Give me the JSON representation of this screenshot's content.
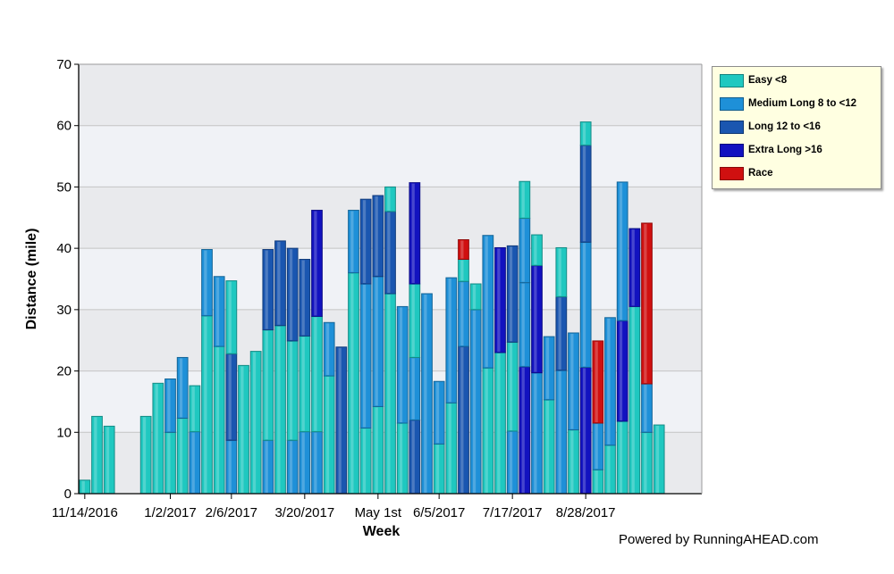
{
  "footer": {
    "credit": "Powered by RunningAHEAD.com"
  },
  "chart_data": {
    "type": "bar",
    "stacked": true,
    "title": "",
    "xlabel": "Week",
    "ylabel": "Distance (mile)",
    "ylim": [
      0,
      70
    ],
    "yticks": [
      0,
      10,
      20,
      30,
      40,
      50,
      60,
      70
    ],
    "grid": true,
    "legend_position": "right-top",
    "weeks": [
      "2016-11-14",
      "2016-11-21",
      "2016-11-28",
      "2016-12-05",
      "2016-12-12",
      "2016-12-19",
      "2016-12-26",
      "2017-01-02",
      "2017-01-09",
      "2017-01-16",
      "2017-01-23",
      "2017-01-30",
      "2017-02-06",
      "2017-02-13",
      "2017-02-20",
      "2017-02-27",
      "2017-03-06",
      "2017-03-13",
      "2017-03-20",
      "2017-03-27",
      "2017-04-03",
      "2017-04-10",
      "2017-04-17",
      "2017-04-24",
      "2017-05-01",
      "2017-05-08",
      "2017-05-15",
      "2017-05-22",
      "2017-05-29",
      "2017-06-05",
      "2017-06-12",
      "2017-06-19",
      "2017-06-26",
      "2017-07-03",
      "2017-07-10",
      "2017-07-17",
      "2017-07-24",
      "2017-07-31",
      "2017-08-07",
      "2017-08-14",
      "2017-08-21",
      "2017-08-28",
      "2017-09-04",
      "2017-09-11",
      "2017-09-18",
      "2017-09-25",
      "2017-10-02",
      "2017-10-09",
      "2017-10-16",
      "2017-10-23",
      "2017-10-30"
    ],
    "x_tick_labels": [
      {
        "week": "2016-11-14",
        "label": "11/14/2016"
      },
      {
        "week": "2017-01-02",
        "label": "1/2/2017"
      },
      {
        "week": "2017-02-06",
        "label": "2/6/2017"
      },
      {
        "week": "2017-03-20",
        "label": "3/20/2017"
      },
      {
        "week": "2017-05-01",
        "label": "May 1st"
      },
      {
        "week": "2017-06-05",
        "label": "6/5/2017"
      },
      {
        "week": "2017-07-17",
        "label": "7/17/2017"
      },
      {
        "week": "2017-08-28",
        "label": "8/28/2017"
      }
    ],
    "series": [
      {
        "name": "Easy <8",
        "color": "#1fc8c0"
      },
      {
        "name": "Medium Long 8 to <12",
        "color": "#1e90d8"
      },
      {
        "name": "Long 12 to <16",
        "color": "#1a56b0"
      },
      {
        "name": "Extra Long >16",
        "color": "#1212c0"
      },
      {
        "name": "Race",
        "color": "#d01010"
      }
    ],
    "bars": [
      {
        "week": "2016-11-14",
        "segments": [
          [
            0,
            2.2
          ]
        ]
      },
      {
        "week": "2016-11-21",
        "segments": [
          [
            0,
            12.6
          ]
        ]
      },
      {
        "week": "2016-11-28",
        "segments": [
          [
            0,
            11
          ]
        ]
      },
      {
        "week": "2016-12-05",
        "segments": []
      },
      {
        "week": "2016-12-12",
        "segments": []
      },
      {
        "week": "2016-12-19",
        "segments": [
          [
            0,
            12.6
          ]
        ]
      },
      {
        "week": "2016-12-26",
        "segments": [
          [
            0,
            18
          ]
        ]
      },
      {
        "week": "2017-01-02",
        "segments": [
          [
            0,
            10
          ],
          [
            1,
            8.7
          ]
        ]
      },
      {
        "week": "2017-01-09",
        "segments": [
          [
            0,
            12.3
          ],
          [
            1,
            9.9
          ]
        ]
      },
      {
        "week": "2017-01-16",
        "segments": [
          [
            1,
            10.1
          ],
          [
            0,
            7.5
          ]
        ]
      },
      {
        "week": "2017-01-23",
        "segments": [
          [
            0,
            29
          ],
          [
            1,
            10.8
          ]
        ]
      },
      {
        "week": "2017-01-30",
        "segments": [
          [
            0,
            24
          ],
          [
            1,
            11.4
          ]
        ]
      },
      {
        "week": "2017-02-06",
        "segments": [
          [
            1,
            8.7
          ],
          [
            2,
            14.1
          ],
          [
            0,
            11.9
          ]
        ]
      },
      {
        "week": "2017-02-13",
        "segments": [
          [
            0,
            20.9
          ]
        ]
      },
      {
        "week": "2017-02-20",
        "segments": [
          [
            0,
            23.2
          ]
        ]
      },
      {
        "week": "2017-02-27",
        "segments": [
          [
            1,
            8.7
          ],
          [
            0,
            18
          ],
          [
            2,
            13.1
          ]
        ]
      },
      {
        "week": "2017-03-06",
        "segments": [
          [
            0,
            27.4
          ],
          [
            2,
            13.8
          ]
        ]
      },
      {
        "week": "2017-03-13",
        "segments": [
          [
            1,
            8.7
          ],
          [
            0,
            16.2
          ],
          [
            2,
            15.1
          ]
        ]
      },
      {
        "week": "2017-03-20",
        "segments": [
          [
            1,
            10.1
          ],
          [
            0,
            15.6
          ],
          [
            2,
            12.5
          ]
        ]
      },
      {
        "week": "2017-03-27",
        "segments": [
          [
            1,
            10.1
          ],
          [
            0,
            18.8
          ],
          [
            3,
            17.3
          ]
        ]
      },
      {
        "week": "2017-04-03",
        "segments": [
          [
            0,
            19.2
          ],
          [
            1,
            8.7
          ]
        ]
      },
      {
        "week": "2017-04-10",
        "segments": [
          [
            2,
            23.9
          ]
        ]
      },
      {
        "week": "2017-04-17",
        "segments": [
          [
            0,
            36
          ],
          [
            1,
            10.2
          ]
        ]
      },
      {
        "week": "2017-04-24",
        "segments": [
          [
            0,
            10.7
          ],
          [
            1,
            23.5
          ],
          [
            2,
            13.8
          ]
        ]
      },
      {
        "week": "2017-05-01",
        "segments": [
          [
            0,
            14.2
          ],
          [
            1,
            21.2
          ],
          [
            2,
            13.2
          ]
        ]
      },
      {
        "week": "2017-05-08",
        "segments": [
          [
            0,
            32.6
          ],
          [
            2,
            13.4
          ],
          [
            0,
            4
          ]
        ]
      },
      {
        "week": "2017-05-15",
        "segments": [
          [
            0,
            11.5
          ],
          [
            1,
            19
          ]
        ]
      },
      {
        "week": "2017-05-22",
        "segments": [
          [
            2,
            12
          ],
          [
            1,
            10.2
          ],
          [
            0,
            12
          ],
          [
            3,
            16.5
          ]
        ]
      },
      {
        "week": "2017-05-29",
        "segments": [
          [
            1,
            32.6
          ]
        ]
      },
      {
        "week": "2017-06-05",
        "segments": [
          [
            0,
            8.1
          ],
          [
            1,
            10.2
          ]
        ]
      },
      {
        "week": "2017-06-12",
        "segments": [
          [
            0,
            14.8
          ],
          [
            1,
            20.4
          ]
        ]
      },
      {
        "week": "2017-06-19",
        "segments": [
          [
            2,
            24
          ],
          [
            1,
            10.6
          ],
          [
            0,
            3.6
          ],
          [
            4,
            3.2
          ]
        ]
      },
      {
        "week": "2017-06-26",
        "segments": [
          [
            1,
            30
          ],
          [
            0,
            4.2
          ]
        ]
      },
      {
        "week": "2017-07-03",
        "segments": [
          [
            0,
            20.5
          ],
          [
            1,
            21.6
          ]
        ]
      },
      {
        "week": "2017-07-10",
        "segments": [
          [
            0,
            23
          ],
          [
            3,
            17.1
          ]
        ]
      },
      {
        "week": "2017-07-17",
        "segments": [
          [
            1,
            10.2
          ],
          [
            0,
            14.5
          ],
          [
            2,
            15.7
          ]
        ]
      },
      {
        "week": "2017-07-24",
        "segments": [
          [
            3,
            20.7
          ],
          [
            1,
            13.7
          ],
          [
            1,
            10.5
          ],
          [
            0,
            6
          ]
        ]
      },
      {
        "week": "2017-07-31",
        "segments": [
          [
            1,
            19.7
          ],
          [
            3,
            17.5
          ],
          [
            0,
            5
          ]
        ]
      },
      {
        "week": "2017-08-07",
        "segments": [
          [
            0,
            15.3
          ],
          [
            1,
            10.3
          ]
        ]
      },
      {
        "week": "2017-08-14",
        "segments": [
          [
            1,
            20.1
          ],
          [
            2,
            12
          ],
          [
            0,
            8
          ]
        ]
      },
      {
        "week": "2017-08-21",
        "segments": [
          [
            0,
            10.4
          ],
          [
            1,
            15.8
          ]
        ]
      },
      {
        "week": "2017-08-28",
        "segments": [
          [
            3,
            20.6
          ],
          [
            1,
            20.4
          ],
          [
            2,
            15.8
          ],
          [
            0,
            3.8
          ]
        ]
      },
      {
        "week": "2017-09-04",
        "segments": [
          [
            0,
            3.9
          ],
          [
            1,
            7.6
          ],
          [
            4,
            13.4
          ]
        ]
      },
      {
        "week": "2017-09-11",
        "segments": [
          [
            0,
            7.9
          ],
          [
            1,
            20.8
          ]
        ]
      },
      {
        "week": "2017-09-18",
        "segments": [
          [
            0,
            11.8
          ],
          [
            3,
            16.4
          ],
          [
            1,
            22.6
          ]
        ]
      },
      {
        "week": "2017-09-25",
        "segments": [
          [
            0,
            32.6
          ],
          [
            1,
            10.6
          ],
          [
            3,
            -12.7
          ]
        ]
      },
      {
        "week": "2017-10-02",
        "segments": [
          [
            0,
            10
          ],
          [
            1,
            7.9
          ],
          [
            4,
            26.2
          ]
        ]
      },
      {
        "week": "2017-10-09",
        "segments": [
          [
            0,
            11.2
          ]
        ]
      }
    ]
  }
}
